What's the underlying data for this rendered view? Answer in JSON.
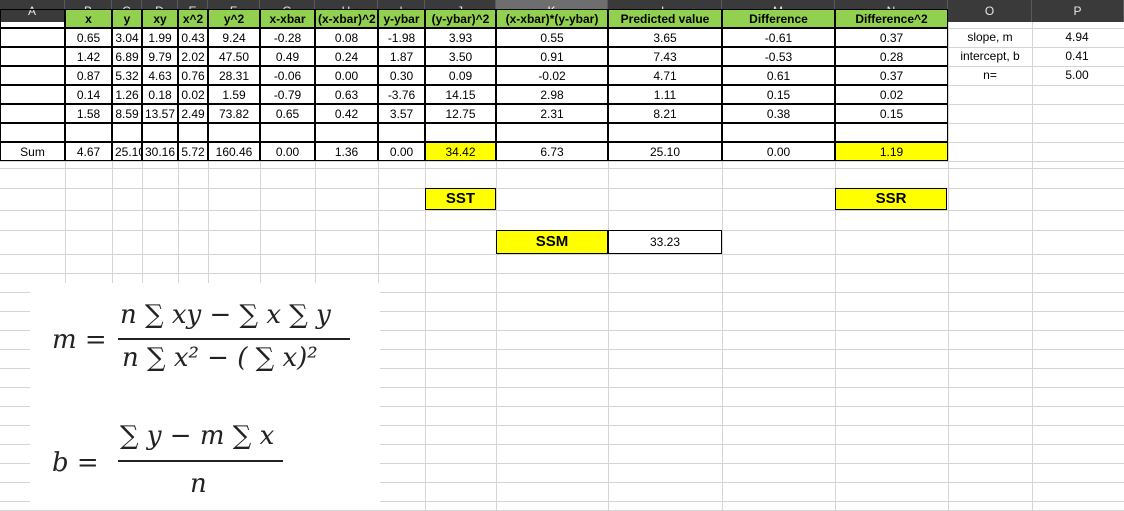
{
  "columns": [
    "A",
    "B",
    "C",
    "D",
    "E",
    "F",
    "G",
    "H",
    "I",
    "J",
    "K",
    "L",
    "M",
    "N",
    "O",
    "P"
  ],
  "selected_column": "K",
  "table": {
    "headers": [
      "x",
      "y",
      "xy",
      "x^2",
      "y^2",
      "x-xbar",
      "(x-xbar)^2",
      "y-ybar",
      "(y-ybar)^2",
      "(x-xbar)*(y-ybar)",
      "Predicted value",
      "Difference",
      "Difference^2"
    ],
    "rows": [
      [
        "0.65",
        "3.04",
        "1.99",
        "0.43",
        "9.24",
        "-0.28",
        "0.08",
        "-1.98",
        "3.93",
        "0.55",
        "3.65",
        "-0.61",
        "0.37"
      ],
      [
        "1.42",
        "6.89",
        "9.79",
        "2.02",
        "47.50",
        "0.49",
        "0.24",
        "1.87",
        "3.50",
        "0.91",
        "7.43",
        "-0.53",
        "0.28"
      ],
      [
        "0.87",
        "5.32",
        "4.63",
        "0.76",
        "28.31",
        "-0.06",
        "0.00",
        "0.30",
        "0.09",
        "-0.02",
        "4.71",
        "0.61",
        "0.37"
      ],
      [
        "0.14",
        "1.26",
        "0.18",
        "0.02",
        "1.59",
        "-0.79",
        "0.63",
        "-3.76",
        "14.15",
        "2.98",
        "1.11",
        "0.15",
        "0.02"
      ],
      [
        "1.58",
        "8.59",
        "13.57",
        "2.49",
        "73.82",
        "0.65",
        "0.42",
        "3.57",
        "12.75",
        "2.31",
        "8.21",
        "0.38",
        "0.15"
      ]
    ],
    "sum_label": "Sum",
    "sums": [
      "4.67",
      "25.10",
      "30.16",
      "5.72",
      "160.46",
      "0.00",
      "1.36",
      "0.00",
      "34.42",
      "6.73",
      "25.10",
      "0.00",
      "1.19"
    ]
  },
  "stats": {
    "slope_label": "slope, m",
    "slope_value": "4.94",
    "intercept_label": "intercept, b",
    "intercept_value": "0.41",
    "n_label": "n=",
    "n_value": "5.00"
  },
  "labels": {
    "sst": "SST",
    "ssr": "SSR",
    "ssm": "SSM",
    "ssm_value": "33.23"
  },
  "formulas": {
    "m_lhs": "m =",
    "m_num": "n ∑ xy − ∑ x ∑ y",
    "m_den": "n ∑ x² − ( ∑ x)²",
    "b_lhs": "b =",
    "b_num": "∑ y − m ∑ x",
    "b_den": "n"
  },
  "colors": {
    "header_green": "#92d050",
    "highlight_yellow": "#ffff00",
    "col_header_bg": "#3a3a3a"
  }
}
